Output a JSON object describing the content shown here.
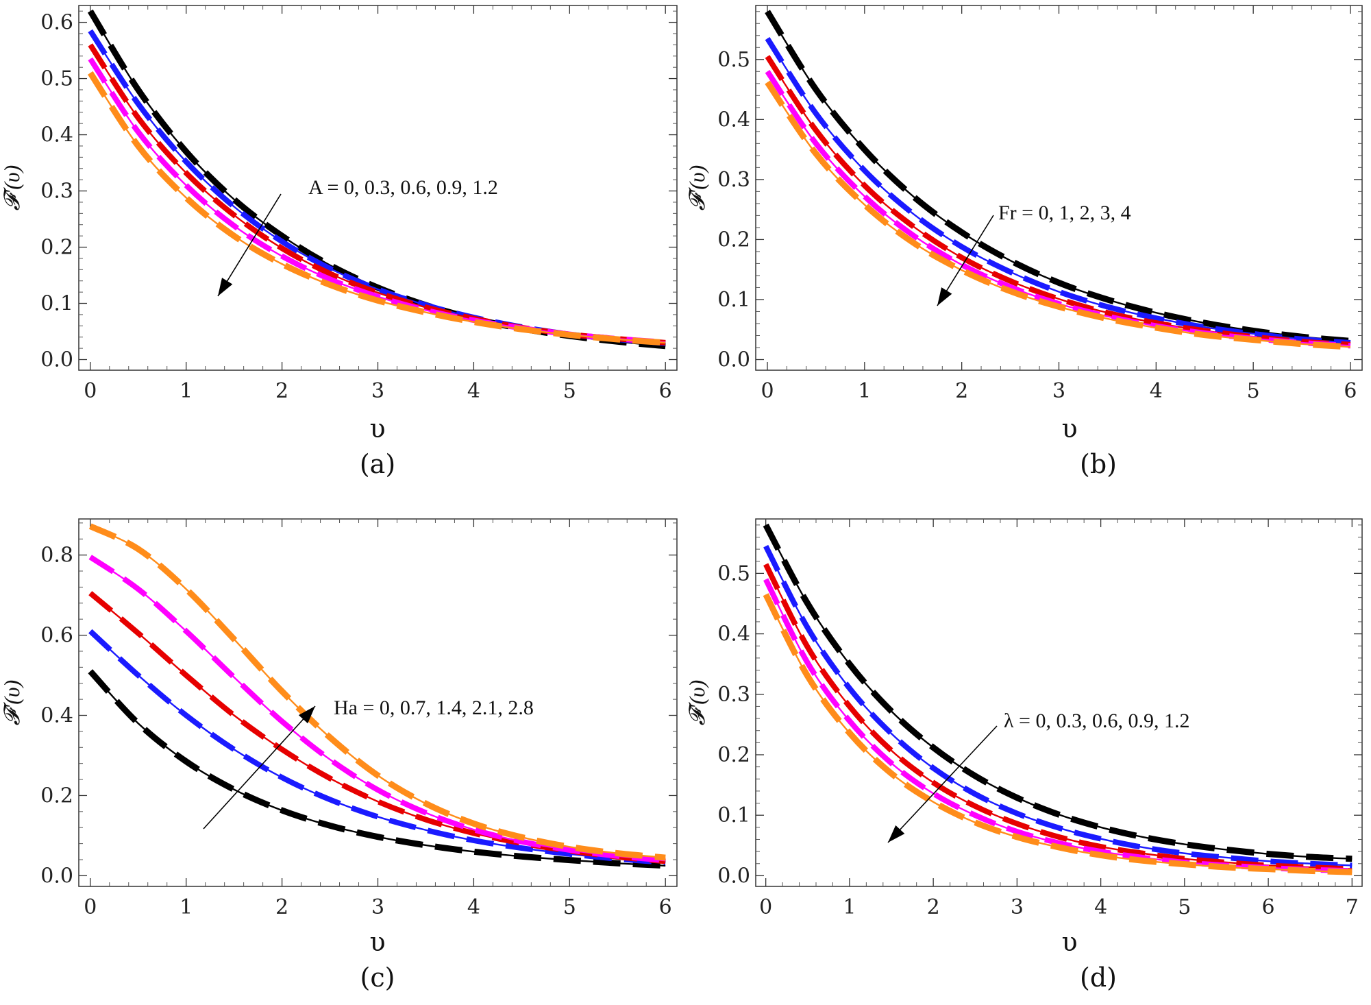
{
  "colors": {
    "black": "#000000",
    "blue": "#1a1aff",
    "red": "#e60000",
    "magenta": "#ff00ff",
    "orange": "#ff8c1a"
  },
  "chart_data": [
    {
      "type": "line",
      "panel": "(a)",
      "caption": "(a)",
      "xlabel": "υ",
      "ylabel": "𝓕'(υ)",
      "xlim": [
        0,
        6
      ],
      "ylim": [
        0,
        0.63
      ],
      "xticks": [
        "0",
        "1",
        "2",
        "3",
        "4",
        "5",
        "6"
      ],
      "yticks": [
        "0.0",
        "0.1",
        "0.2",
        "0.3",
        "0.4",
        "0.5",
        "0.6"
      ],
      "annotation": "A = 0, 0.3, 0.6, 0.9, 1.2",
      "arrow_direction": "down-left",
      "series": [
        {
          "name": "A = 0",
          "color": "black",
          "x": [
            0,
            0.5,
            1,
            1.5,
            2,
            2.5,
            3,
            3.5,
            4,
            4.5,
            5,
            5.5,
            6
          ],
          "values": [
            0.62,
            0.48,
            0.37,
            0.285,
            0.22,
            0.168,
            0.128,
            0.097,
            0.073,
            0.055,
            0.042,
            0.032,
            0.024
          ]
        },
        {
          "name": "A = 0.3",
          "color": "blue",
          "x": [
            0,
            0.5,
            1,
            1.5,
            2,
            2.5,
            3,
            3.5,
            4,
            4.5,
            5,
            5.5,
            6
          ],
          "values": [
            0.585,
            0.455,
            0.352,
            0.272,
            0.21,
            0.162,
            0.125,
            0.097,
            0.075,
            0.058,
            0.045,
            0.036,
            0.029
          ]
        },
        {
          "name": "A = 0.6",
          "color": "red",
          "x": [
            0,
            0.5,
            1,
            1.5,
            2,
            2.5,
            3,
            3.5,
            4,
            4.5,
            5,
            5.5,
            6
          ],
          "values": [
            0.56,
            0.43,
            0.332,
            0.257,
            0.198,
            0.153,
            0.119,
            0.093,
            0.073,
            0.057,
            0.045,
            0.037,
            0.03
          ]
        },
        {
          "name": "A = 0.9",
          "color": "magenta",
          "x": [
            0,
            0.5,
            1,
            1.5,
            2,
            2.5,
            3,
            3.5,
            4,
            4.5,
            5,
            5.5,
            6
          ],
          "values": [
            0.535,
            0.405,
            0.31,
            0.238,
            0.184,
            0.143,
            0.112,
            0.088,
            0.07,
            0.056,
            0.045,
            0.037,
            0.031
          ]
        },
        {
          "name": "A = 1.2",
          "color": "orange",
          "x": [
            0,
            0.5,
            1,
            1.5,
            2,
            2.5,
            3,
            3.5,
            4,
            4.5,
            5,
            5.5,
            6
          ],
          "values": [
            0.51,
            0.38,
            0.288,
            0.22,
            0.17,
            0.133,
            0.105,
            0.084,
            0.067,
            0.054,
            0.044,
            0.036,
            0.03
          ]
        }
      ]
    },
    {
      "type": "line",
      "panel": "(b)",
      "caption": "(b)",
      "xlabel": "υ",
      "ylabel": "𝓕'(υ)",
      "xlim": [
        0,
        6
      ],
      "ylim": [
        0,
        0.59
      ],
      "xticks": [
        "0",
        "1",
        "2",
        "3",
        "4",
        "5",
        "6"
      ],
      "yticks": [
        "0.0",
        "0.1",
        "0.2",
        "0.3",
        "0.4",
        "0.5"
      ],
      "annotation": "Fr = 0, 1, 2, 3, 4",
      "arrow_direction": "down-left",
      "series": [
        {
          "name": "Fr = 0",
          "color": "black",
          "x": [
            0,
            0.5,
            1,
            1.5,
            2,
            2.5,
            3,
            3.5,
            4,
            4.5,
            5,
            5.5,
            6
          ],
          "values": [
            0.58,
            0.45,
            0.35,
            0.272,
            0.212,
            0.165,
            0.128,
            0.1,
            0.078,
            0.061,
            0.048,
            0.038,
            0.031
          ]
        },
        {
          "name": "Fr = 1",
          "color": "blue",
          "x": [
            0,
            0.5,
            1,
            1.5,
            2,
            2.5,
            3,
            3.5,
            4,
            4.5,
            5,
            5.5,
            6
          ],
          "values": [
            0.535,
            0.41,
            0.315,
            0.243,
            0.188,
            0.146,
            0.113,
            0.088,
            0.069,
            0.054,
            0.043,
            0.034,
            0.028
          ]
        },
        {
          "name": "Fr = 2",
          "color": "red",
          "x": [
            0,
            0.5,
            1,
            1.5,
            2,
            2.5,
            3,
            3.5,
            4,
            4.5,
            5,
            5.5,
            6
          ],
          "values": [
            0.505,
            0.382,
            0.29,
            0.222,
            0.17,
            0.131,
            0.101,
            0.078,
            0.061,
            0.048,
            0.038,
            0.03,
            0.025
          ]
        },
        {
          "name": "Fr = 3",
          "color": "magenta",
          "x": [
            0,
            0.5,
            1,
            1.5,
            2,
            2.5,
            3,
            3.5,
            4,
            4.5,
            5,
            5.5,
            6
          ],
          "values": [
            0.48,
            0.36,
            0.272,
            0.207,
            0.158,
            0.121,
            0.093,
            0.072,
            0.056,
            0.044,
            0.035,
            0.028,
            0.023
          ]
        },
        {
          "name": "Fr = 4",
          "color": "orange",
          "x": [
            0,
            0.5,
            1,
            1.5,
            2,
            2.5,
            3,
            3.5,
            4,
            4.5,
            5,
            5.5,
            6
          ],
          "values": [
            0.462,
            0.343,
            0.258,
            0.195,
            0.149,
            0.114,
            0.088,
            0.068,
            0.053,
            0.041,
            0.033,
            0.026,
            0.021
          ]
        }
      ]
    },
    {
      "type": "line",
      "panel": "(c)",
      "caption": "(c)",
      "xlabel": "υ",
      "ylabel": "𝓕'(υ)",
      "xlim": [
        0,
        6
      ],
      "ylim": [
        0,
        0.89
      ],
      "xticks": [
        "0",
        "1",
        "2",
        "3",
        "4",
        "5",
        "6"
      ],
      "yticks": [
        "0.0",
        "0.2",
        "0.4",
        "0.6",
        "0.8"
      ],
      "annotation": "Ha = 0, 0.7, 1.4, 2.1, 2.8",
      "arrow_direction": "up-right",
      "series": [
        {
          "name": "Ha = 0",
          "color": "black",
          "x": [
            0,
            0.5,
            1,
            1.5,
            2,
            2.5,
            3,
            3.5,
            4,
            4.5,
            5,
            5.5,
            6
          ],
          "values": [
            0.51,
            0.38,
            0.285,
            0.215,
            0.163,
            0.125,
            0.097,
            0.076,
            0.06,
            0.048,
            0.039,
            0.031,
            0.025
          ]
        },
        {
          "name": "Ha = 0.7",
          "color": "blue",
          "x": [
            0,
            0.5,
            1,
            1.5,
            2,
            2.5,
            3,
            3.5,
            4,
            4.5,
            5,
            5.5,
            6
          ],
          "values": [
            0.61,
            0.5,
            0.4,
            0.315,
            0.245,
            0.19,
            0.147,
            0.114,
            0.088,
            0.069,
            0.054,
            0.042,
            0.033
          ]
        },
        {
          "name": "Ha = 1.4",
          "color": "red",
          "x": [
            0,
            0.5,
            1,
            1.5,
            2,
            2.5,
            3,
            3.5,
            4,
            4.5,
            5,
            5.5,
            6
          ],
          "values": [
            0.705,
            0.605,
            0.5,
            0.4,
            0.315,
            0.243,
            0.185,
            0.14,
            0.106,
            0.081,
            0.062,
            0.047,
            0.036
          ]
        },
        {
          "name": "Ha = 2.1",
          "color": "magenta",
          "x": [
            0,
            0.5,
            1,
            1.5,
            2,
            2.5,
            3,
            3.5,
            4,
            4.5,
            5,
            5.5,
            6
          ],
          "values": [
            0.795,
            0.715,
            0.61,
            0.495,
            0.385,
            0.29,
            0.214,
            0.157,
            0.115,
            0.085,
            0.064,
            0.049,
            0.038
          ]
        },
        {
          "name": "Ha = 2.8",
          "color": "orange",
          "x": [
            0,
            0.5,
            1,
            1.5,
            2,
            2.5,
            3,
            3.5,
            4,
            4.5,
            5,
            5.5,
            6
          ],
          "values": [
            0.872,
            0.815,
            0.715,
            0.59,
            0.46,
            0.345,
            0.25,
            0.18,
            0.13,
            0.096,
            0.072,
            0.056,
            0.045
          ]
        }
      ]
    },
    {
      "type": "line",
      "panel": "(d)",
      "caption": "(d)",
      "xlabel": "υ",
      "ylabel": "𝓕'(υ)",
      "xlim": [
        0,
        7
      ],
      "ylim": [
        0,
        0.59
      ],
      "xticks": [
        "0",
        "1",
        "2",
        "3",
        "4",
        "5",
        "6",
        "7"
      ],
      "yticks": [
        "0.0",
        "0.1",
        "0.2",
        "0.3",
        "0.4",
        "0.5"
      ],
      "annotation": "λ = 0, 0.3, 0.6, 0.9, 1.2",
      "arrow_direction": "down-left",
      "series": [
        {
          "name": "λ = 0",
          "color": "black",
          "x": [
            0,
            0.5,
            1,
            1.5,
            2,
            2.5,
            3,
            3.5,
            4,
            4.5,
            5,
            5.5,
            6,
            6.5,
            7
          ],
          "values": [
            0.58,
            0.45,
            0.35,
            0.272,
            0.212,
            0.165,
            0.129,
            0.101,
            0.08,
            0.064,
            0.052,
            0.043,
            0.036,
            0.031,
            0.028
          ]
        },
        {
          "name": "λ = 0.3",
          "color": "blue",
          "x": [
            0,
            0.5,
            1,
            1.5,
            2,
            2.5,
            3,
            3.5,
            4,
            4.5,
            5,
            5.5,
            6,
            6.5,
            7
          ],
          "values": [
            0.545,
            0.41,
            0.31,
            0.235,
            0.178,
            0.135,
            0.103,
            0.079,
            0.061,
            0.047,
            0.037,
            0.03,
            0.024,
            0.02,
            0.017
          ]
        },
        {
          "name": "λ = 0.6",
          "color": "red",
          "x": [
            0,
            0.5,
            1,
            1.5,
            2,
            2.5,
            3,
            3.5,
            4,
            4.5,
            5,
            5.5,
            6,
            6.5,
            7
          ],
          "values": [
            0.515,
            0.378,
            0.28,
            0.207,
            0.154,
            0.115,
            0.086,
            0.064,
            0.048,
            0.037,
            0.028,
            0.022,
            0.017,
            0.014,
            0.011
          ]
        },
        {
          "name": "λ = 0.9",
          "color": "magenta",
          "x": [
            0,
            0.5,
            1,
            1.5,
            2,
            2.5,
            3,
            3.5,
            4,
            4.5,
            5,
            5.5,
            6,
            6.5,
            7
          ],
          "values": [
            0.49,
            0.352,
            0.256,
            0.186,
            0.136,
            0.1,
            0.073,
            0.054,
            0.04,
            0.03,
            0.022,
            0.017,
            0.013,
            0.01,
            0.008
          ]
        },
        {
          "name": "λ = 1.2",
          "color": "orange",
          "x": [
            0,
            0.5,
            1,
            1.5,
            2,
            2.5,
            3,
            3.5,
            4,
            4.5,
            5,
            5.5,
            6,
            6.5,
            7
          ],
          "values": [
            0.465,
            0.33,
            0.236,
            0.169,
            0.122,
            0.088,
            0.064,
            0.047,
            0.034,
            0.025,
            0.019,
            0.014,
            0.011,
            0.008,
            0.006
          ]
        }
      ]
    }
  ]
}
